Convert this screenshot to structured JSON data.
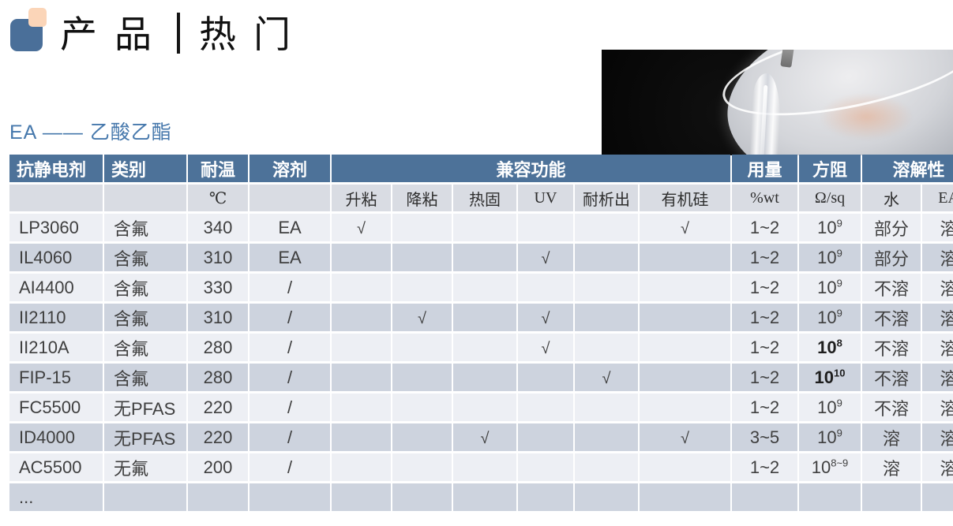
{
  "header": {
    "title_left": "产品",
    "title_right": "热门",
    "subtitle": "EA —— 乙酸乙酯"
  },
  "colors": {
    "header_blue": "#4d7299",
    "row_light": "#edeff4",
    "row_dark": "#cdd3de",
    "units_bg": "#d9dce3",
    "accent_blue": "#4678ac",
    "logo_blue": "#4a6f99",
    "logo_peach": "#fbd5b8"
  },
  "table": {
    "header_groups": [
      {
        "label": "抗静电剂",
        "colspan": 1,
        "align": "left"
      },
      {
        "label": "类别",
        "colspan": 1,
        "align": "left"
      },
      {
        "label": "耐温",
        "colspan": 1,
        "align": "center"
      },
      {
        "label": "溶剂",
        "colspan": 1,
        "align": "center"
      },
      {
        "label": "兼容功能",
        "colspan": 6,
        "align": "center"
      },
      {
        "label": "用量",
        "colspan": 1,
        "align": "center"
      },
      {
        "label": "方阻",
        "colspan": 1,
        "align": "center"
      },
      {
        "label": "溶解性",
        "colspan": 2,
        "align": "center"
      }
    ],
    "unit_row": [
      "",
      "",
      "℃",
      "",
      "升粘",
      "降粘",
      "热固",
      "UV",
      "耐析出",
      "有机硅",
      "%wt",
      "Ω/sq",
      "水",
      "EA"
    ],
    "check_glyph": "√",
    "rows": [
      {
        "name": "LP3060",
        "category": "含氟",
        "temp": "340",
        "solvent": "EA",
        "compat": [
          "√",
          "",
          "",
          "",
          "",
          "√"
        ],
        "dosage": "1~2",
        "resistance": {
          "base": "10",
          "exp": "9",
          "bold": false
        },
        "water": "部分",
        "ea": "溶"
      },
      {
        "name": "IL4060",
        "category": "含氟",
        "temp": "310",
        "solvent": "EA",
        "compat": [
          "",
          "",
          "",
          "√",
          "",
          ""
        ],
        "dosage": "1~2",
        "resistance": {
          "base": "10",
          "exp": "9",
          "bold": false
        },
        "water": "部分",
        "ea": "溶"
      },
      {
        "name": "AI4400",
        "category": "含氟",
        "temp": "330",
        "solvent": "/",
        "compat": [
          "",
          "",
          "",
          "",
          "",
          ""
        ],
        "dosage": "1~2",
        "resistance": {
          "base": "10",
          "exp": "9",
          "bold": false
        },
        "water": "不溶",
        "ea": "溶"
      },
      {
        "name": "II2110",
        "category": "含氟",
        "temp": "310",
        "solvent": "/",
        "compat": [
          "",
          "√",
          "",
          "√",
          "",
          ""
        ],
        "dosage": "1~2",
        "resistance": {
          "base": "10",
          "exp": "9",
          "bold": false
        },
        "water": "不溶",
        "ea": "溶"
      },
      {
        "name": "II210A",
        "category": "含氟",
        "temp": "280",
        "solvent": "/",
        "compat": [
          "",
          "",
          "",
          "√",
          "",
          ""
        ],
        "dosage": "1~2",
        "resistance": {
          "base": "10",
          "exp": "8",
          "bold": true
        },
        "water": "不溶",
        "ea": "溶"
      },
      {
        "name": "FIP-15",
        "category": "含氟",
        "temp": "280",
        "solvent": "/",
        "compat": [
          "",
          "",
          "",
          "",
          "√",
          ""
        ],
        "dosage": "1~2",
        "resistance": {
          "base": "10",
          "exp": "10",
          "bold": true
        },
        "water": "不溶",
        "ea": "溶"
      },
      {
        "name": "FC5500",
        "category": "无PFAS",
        "temp": "220",
        "solvent": "/",
        "compat": [
          "",
          "",
          "",
          "",
          "",
          ""
        ],
        "dosage": "1~2",
        "resistance": {
          "base": "10",
          "exp": "9",
          "bold": false
        },
        "water": "不溶",
        "ea": "溶"
      },
      {
        "name": "ID4000",
        "category": "无PFAS",
        "temp": "220",
        "solvent": "/",
        "compat": [
          "",
          "",
          "√",
          "",
          "",
          "√"
        ],
        "dosage": "3~5",
        "resistance": {
          "base": "10",
          "exp": "9",
          "bold": false
        },
        "water": "溶",
        "ea": "溶"
      },
      {
        "name": "AC5500",
        "category": "无氟",
        "temp": "200",
        "solvent": "/",
        "compat": [
          "",
          "",
          "",
          "",
          "",
          ""
        ],
        "dosage": "1~2",
        "resistance": {
          "base": "10",
          "exp": "8~9",
          "bold": false
        },
        "water": "溶",
        "ea": "溶"
      },
      {
        "name": "...",
        "category": "",
        "temp": "",
        "solvent": "",
        "compat": [
          "",
          "",
          "",
          "",
          "",
          ""
        ],
        "dosage": "",
        "resistance": null,
        "water": "",
        "ea": ""
      }
    ]
  }
}
